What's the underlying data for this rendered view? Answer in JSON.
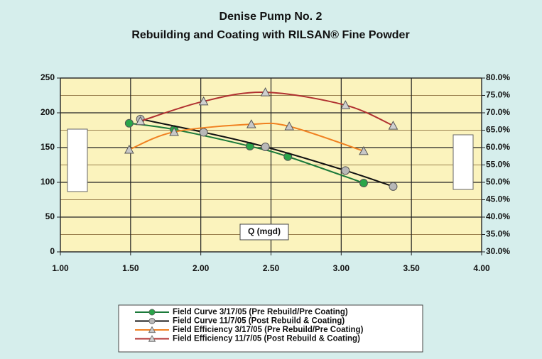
{
  "chart_data": {
    "type": "line",
    "title": "Denise Pump No. 2",
    "subtitle": "Rebuilding and Coating with RILSAN® Fine Powder",
    "annotation": "Q (mgd)",
    "xlim": [
      1,
      4
    ],
    "xticks": [
      {
        "value": 1,
        "label": "1.00"
      },
      {
        "value": 1.5,
        "label": "1.50"
      },
      {
        "value": 2,
        "label": "2.00"
      },
      {
        "value": 2.5,
        "label": "2.50"
      },
      {
        "value": 3,
        "label": "3.00"
      },
      {
        "value": 3.5,
        "label": "3.50"
      },
      {
        "value": 4,
        "label": "4.00"
      }
    ],
    "ylim": [
      0,
      250
    ],
    "yticks": [
      0,
      50,
      100,
      150,
      200,
      250
    ],
    "y2lim": [
      30,
      80
    ],
    "y2ticks": [
      {
        "value": 30,
        "label": "30.0%"
      },
      {
        "value": 35,
        "label": "35.0%"
      },
      {
        "value": 40,
        "label": "40.0%"
      },
      {
        "value": 45,
        "label": "45.0%"
      },
      {
        "value": 50,
        "label": "50.0%"
      },
      {
        "value": 55,
        "label": "55.0%"
      },
      {
        "value": 60,
        "label": "60.0%"
      },
      {
        "value": 65,
        "label": "65.0%"
      },
      {
        "value": 70,
        "label": "70.0%"
      },
      {
        "value": 75,
        "label": "75.0%"
      },
      {
        "value": 80,
        "label": "80.0%"
      }
    ],
    "grid": true,
    "legend": "bottom",
    "series": [
      {
        "name": "Field Curve 3/17/05 (Pre Rebuild/Pre Coating)",
        "color": "#1b7a3a",
        "marker": "circle",
        "marker_color": "#2aa54a",
        "axis": "y",
        "x": [
          1.49,
          1.81,
          2.35,
          2.62,
          3.16
        ],
        "values": [
          185,
          176,
          152,
          137,
          99
        ]
      },
      {
        "name": "Field Curve 11/7/05 (Post Rebuild & Coating)",
        "color": "#111111",
        "marker": "circle",
        "marker_color": "#b8b8b8",
        "axis": "y",
        "x": [
          1.57,
          2.02,
          2.46,
          3.03,
          3.37
        ],
        "values": [
          191,
          172,
          151,
          117,
          94
        ]
      },
      {
        "name": "Field Efficiency 3/17/05 (Pre Rebuild/Pre Coating)",
        "color": "#f08020",
        "marker": "triangle",
        "marker_color": "#c8c8c8",
        "axis": "y2",
        "x": [
          1.49,
          1.81,
          2.36,
          2.63,
          3.16
        ],
        "values": [
          59.4,
          64.5,
          66.7,
          66.1,
          59
        ]
      },
      {
        "name": "Field Efficiency 11/7/05 (Post Rebuild & Coating)",
        "color": "#b03030",
        "marker": "triangle",
        "marker_color": "#d0d0d0",
        "axis": "y2",
        "x": [
          1.57,
          2.02,
          2.46,
          3.03,
          3.37
        ],
        "values": [
          67.6,
          73.3,
          75.9,
          72.2,
          66.3
        ]
      }
    ]
  }
}
